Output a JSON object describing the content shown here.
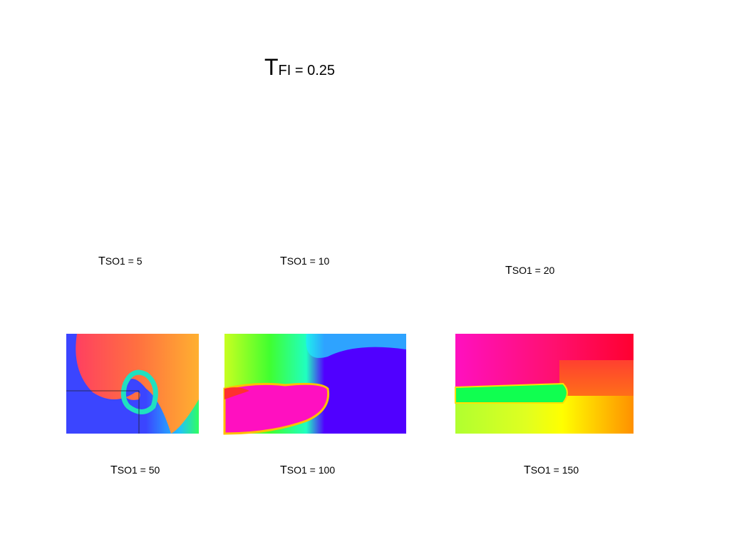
{
  "title": {
    "letter": "T",
    "rest": "FI = 0.25"
  },
  "labels": [
    {
      "letter": "T",
      "rest": "SO1 = 5"
    },
    {
      "letter": "T",
      "rest": "SO1 = 10"
    },
    {
      "letter": "T",
      "rest": "SO1 = 20"
    },
    {
      "letter": "T",
      "rest": "SO1 = 50"
    },
    {
      "letter": "T",
      "rest": "SO1 = 100"
    },
    {
      "letter": "T",
      "rest": "SO1 = 150"
    }
  ]
}
